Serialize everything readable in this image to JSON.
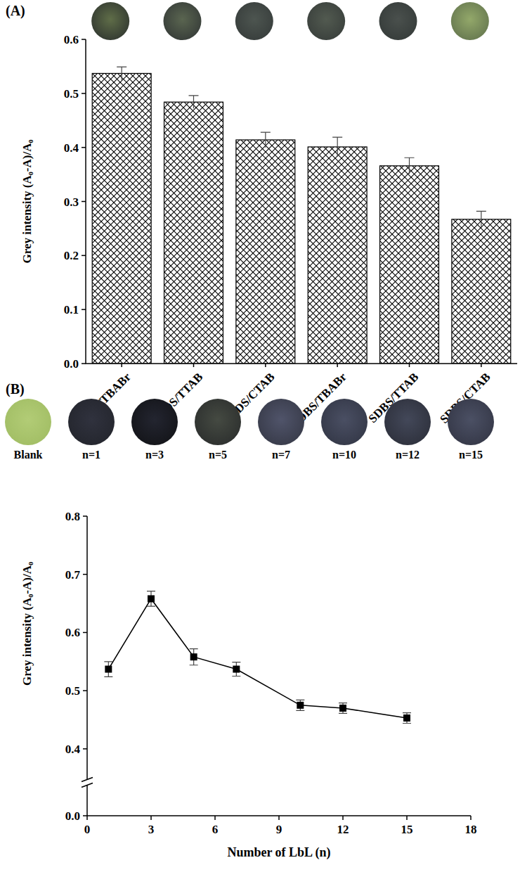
{
  "chart_data": [
    {
      "type": "bar",
      "title": "(A)",
      "y_label": "Grey  intensity (A₀-A)/A₀",
      "categories": [
        "SDS/TBABr",
        "SDS/TTAB",
        "SDS/CTAB",
        "SDBS/TBABr",
        "SDBS/TTAB",
        "SDBS/CTAB"
      ],
      "values": [
        0.537,
        0.484,
        0.414,
        0.401,
        0.366,
        0.267
      ],
      "errors": [
        0.012,
        0.012,
        0.014,
        0.018,
        0.015,
        0.015
      ],
      "color": "#000000",
      "ylim": [
        0,
        0.6
      ],
      "yticks": [
        {
          "value": 0,
          "label": "0.0"
        },
        0.1,
        0.2,
        0.3,
        0.4,
        0.5,
        0.6
      ],
      "grid": false
    },
    {
      "type": "line",
      "title": "(B)",
      "x_label": "Number of LbL (n)",
      "y_label": "Grey  intensity (A₀-A)/A₀",
      "image_labels": [
        "Blank",
        "n=1",
        "n=3",
        "n=5",
        "n=7",
        "n=10",
        "n=12",
        "n=15"
      ],
      "x": [
        1,
        3,
        5,
        7,
        10,
        12,
        15
      ],
      "values": [
        0.537,
        0.658,
        0.558,
        0.537,
        0.475,
        0.47,
        0.453
      ],
      "errors": [
        0.013,
        0.013,
        0.014,
        0.012,
        0.009,
        0.009,
        0.009
      ],
      "color": "#000000",
      "marker": "square",
      "xlim": [
        0,
        18
      ],
      "xticks": [
        0,
        3,
        6,
        9,
        12,
        15,
        18
      ],
      "ylim": [
        0,
        0.8
      ],
      "yticks": [
        {
          "value": 0,
          "label": "0.0"
        },
        0.4,
        0.5,
        0.6,
        0.7,
        0.8
      ],
      "grid": false
    }
  ]
}
